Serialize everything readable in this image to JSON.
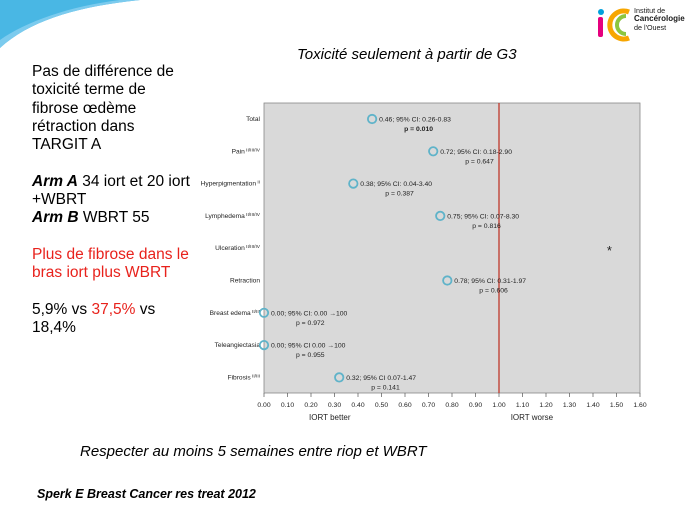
{
  "logo": {
    "lines": [
      "Institut de",
      "Cancérologie",
      "de l'Ouest"
    ],
    "colors": [
      "#f7a600",
      "#8cc63f",
      "#00a0dc",
      "#e5007e"
    ]
  },
  "slide": {
    "subtitle": "Toxicité seulement à partir de G3",
    "left": {
      "p1": "Pas de différence de toxicité terme de fibrose œdème rétraction dans TARGIT A",
      "arm_a_label": "Arm A",
      "arm_a_text": " 34 iort et 20 iort +WBRT",
      "arm_b_label": "Arm B",
      "arm_b_text": " WBRT 55",
      "red_text": "Plus de fibrose dans le bras iort plus WBRT",
      "stat_1": "5,9% vs ",
      "stat_2": "37,5%",
      "stat_3": " vs 18,4%"
    },
    "bottom_note": "Respecter au moins 5 semaines entre riop et WBRT",
    "citation": "Sperk E Breast Cancer res treat 2012"
  },
  "chart_data": {
    "type": "scatter",
    "title": "",
    "xlim": [
      0,
      1.6
    ],
    "x_ticks": [
      "0.00",
      "0.10",
      "0.20",
      "0.30",
      "0.40",
      "0.50",
      "0.60",
      "0.70",
      "0.80",
      "0.90",
      "1.00",
      "1.10",
      "1.20",
      "1.30",
      "1.40",
      "1.50",
      "1.60"
    ],
    "xlabel_left": "IORT better",
    "xlabel_right": "IORT worse",
    "reference_x": 1.0,
    "reference_color": "#c0392b",
    "plot_bg": "#d9d9d9",
    "marker_color": "#5fb3c9",
    "rows": [
      {
        "label": "Total",
        "grades": "",
        "x": 0.46,
        "ci": "0.46; 95% CI: 0.26-0.83",
        "p": "p = 0.010",
        "p_bold": true
      },
      {
        "label": "Pain",
        "grades": "II/III/IV",
        "x": 0.72,
        "ci": "0.72; 95% CI: 0.18-2.90",
        "p": "p = 0.647",
        "p_bold": false
      },
      {
        "label": "Hyperpigmentation",
        "grades": "II",
        "x": 0.38,
        "ci": "0.38; 95% CI: 0.04-3.40",
        "p": "p = 0.387",
        "p_bold": false
      },
      {
        "label": "Lymphedema",
        "grades": "II/III/IV",
        "x": 0.75,
        "ci": "0.75; 95% CI: 0.07-8.30",
        "p": "p = 0.816",
        "p_bold": false
      },
      {
        "label": "Ulceration",
        "grades": "II/III/IV",
        "x": null,
        "ci": "",
        "p": "",
        "p_bold": false,
        "marker": "*"
      },
      {
        "label": "Retraction",
        "grades": "",
        "x": 0.78,
        "ci": "0.78; 95% CI: 0.31-1.97",
        "p": "p = 0.606",
        "p_bold": false
      },
      {
        "label": "Breast edema",
        "grades": "II/III",
        "x": 0.0,
        "ci": "0.00; 95% CI: 0.00 →100",
        "p": "p = 0.972",
        "p_bold": false
      },
      {
        "label": "Teleangiectasia",
        "grades": "",
        "x": 0.0,
        "ci": "0.00; 95% CI 0.00 →100",
        "p": "p = 0.955",
        "p_bold": false
      },
      {
        "label": "Fibrosis",
        "grades": "II/III",
        "x": 0.32,
        "ci": "0.32; 95% CI 0.07-1.47",
        "p": "p = 0.141",
        "p_bold": false
      }
    ]
  }
}
